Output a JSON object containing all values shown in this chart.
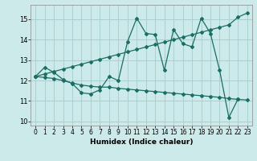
{
  "xlabel": "Humidex (Indice chaleur)",
  "x_ticks": [
    0,
    1,
    2,
    3,
    4,
    5,
    6,
    7,
    8,
    9,
    10,
    11,
    12,
    13,
    14,
    15,
    16,
    17,
    18,
    19,
    20,
    21,
    22,
    23
  ],
  "ylim": [
    9.8,
    15.7
  ],
  "xlim": [
    -0.5,
    23.5
  ],
  "y_ticks": [
    10,
    11,
    12,
    13,
    14,
    15
  ],
  "bg_color": "#cceaea",
  "grid_color": "#aad0d0",
  "line_color": "#1a6e64",
  "line1_x": [
    0,
    1,
    2,
    3,
    4,
    5,
    6,
    7,
    8,
    9,
    10,
    11,
    12,
    13,
    14,
    15,
    16,
    17,
    18,
    19,
    20,
    21,
    22
  ],
  "line1_y": [
    12.2,
    12.65,
    12.4,
    12.05,
    11.85,
    11.4,
    11.35,
    11.55,
    12.2,
    12.0,
    13.9,
    15.05,
    14.3,
    14.25,
    12.5,
    14.5,
    13.8,
    13.65,
    15.05,
    14.3,
    12.5,
    10.2,
    11.1
  ],
  "line2_x": [
    0,
    1,
    2,
    3,
    4,
    5,
    6,
    7,
    8,
    9,
    10,
    11,
    12,
    13,
    14,
    15,
    16,
    17,
    18,
    19,
    20,
    21,
    22,
    23
  ],
  "line2_y": [
    12.2,
    12.32,
    12.44,
    12.56,
    12.68,
    12.8,
    12.92,
    13.04,
    13.16,
    13.28,
    13.4,
    13.52,
    13.64,
    13.76,
    13.88,
    14.0,
    14.12,
    14.24,
    14.36,
    14.48,
    14.6,
    14.72,
    15.1,
    15.3
  ],
  "line3_x": [
    0,
    1,
    2,
    3,
    4,
    5,
    6,
    7,
    8,
    9,
    10,
    11,
    12,
    13,
    14,
    15,
    16,
    17,
    18,
    19,
    20,
    21,
    22,
    23
  ],
  "line3_y": [
    12.2,
    12.15,
    12.1,
    12.0,
    11.88,
    11.78,
    11.72,
    11.68,
    11.68,
    11.62,
    11.58,
    11.54,
    11.5,
    11.46,
    11.42,
    11.38,
    11.34,
    11.3,
    11.26,
    11.22,
    11.18,
    11.12,
    11.08,
    11.05
  ]
}
